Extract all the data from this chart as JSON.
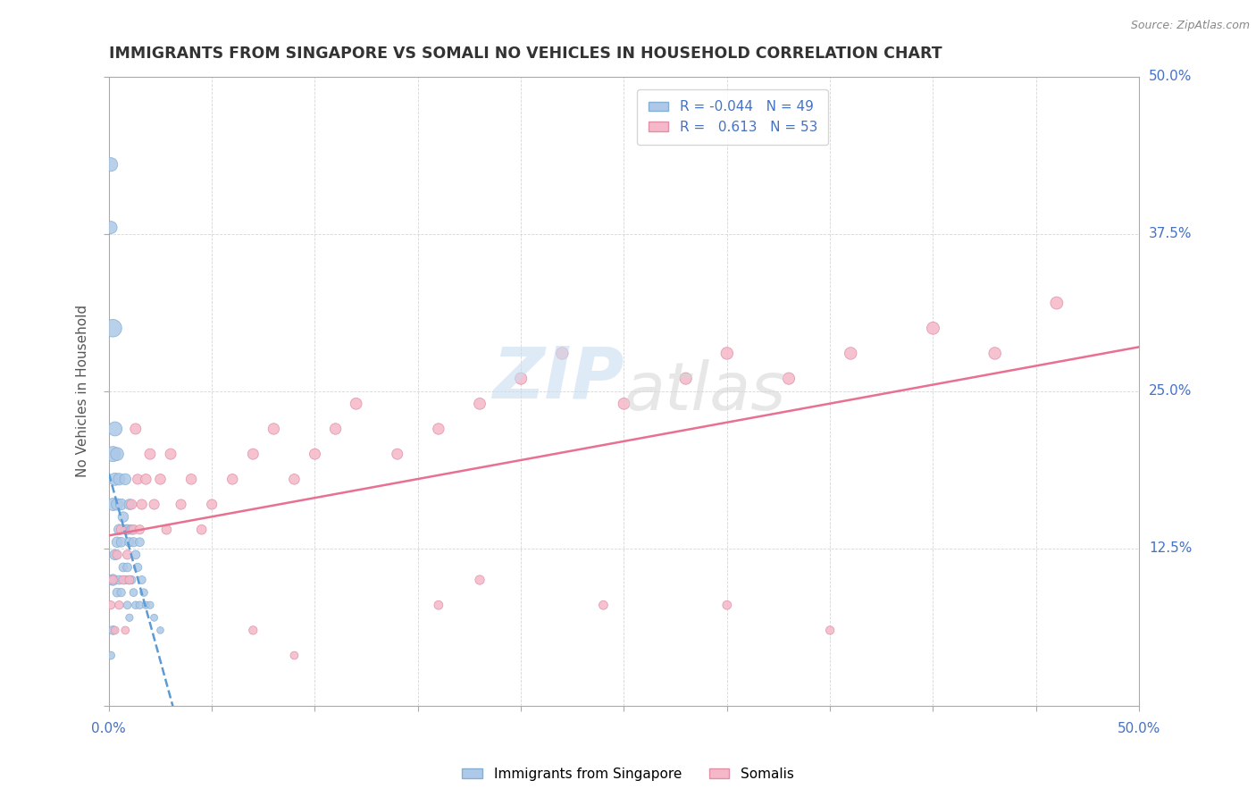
{
  "title": "IMMIGRANTS FROM SINGAPORE VS SOMALI NO VEHICLES IN HOUSEHOLD CORRELATION CHART",
  "source": "Source: ZipAtlas.com",
  "ylabel": "No Vehicles in Household",
  "blue_color": "#adc8e8",
  "pink_color": "#f5b8c8",
  "blue_line_color": "#5b9bd5",
  "pink_line_color": "#e87090",
  "xlim": [
    0.0,
    0.5
  ],
  "ylim": [
    0.0,
    0.5
  ],
  "sg_x": [
    0.001,
    0.001,
    0.001,
    0.001,
    0.002,
    0.002,
    0.002,
    0.002,
    0.002,
    0.003,
    0.003,
    0.003,
    0.004,
    0.004,
    0.004,
    0.004,
    0.005,
    0.005,
    0.005,
    0.006,
    0.006,
    0.006,
    0.007,
    0.007,
    0.008,
    0.008,
    0.008,
    0.009,
    0.009,
    0.009,
    0.01,
    0.01,
    0.01,
    0.01,
    0.011,
    0.011,
    0.012,
    0.012,
    0.013,
    0.013,
    0.014,
    0.015,
    0.015,
    0.016,
    0.017,
    0.018,
    0.02,
    0.022,
    0.025
  ],
  "sg_y": [
    0.43,
    0.38,
    0.1,
    0.04,
    0.3,
    0.2,
    0.16,
    0.1,
    0.06,
    0.22,
    0.18,
    0.12,
    0.2,
    0.16,
    0.13,
    0.09,
    0.18,
    0.14,
    0.1,
    0.16,
    0.13,
    0.09,
    0.15,
    0.11,
    0.18,
    0.14,
    0.1,
    0.14,
    0.11,
    0.08,
    0.16,
    0.13,
    0.1,
    0.07,
    0.14,
    0.1,
    0.13,
    0.09,
    0.12,
    0.08,
    0.11,
    0.13,
    0.08,
    0.1,
    0.09,
    0.08,
    0.08,
    0.07,
    0.06
  ],
  "sg_size": [
    120,
    100,
    60,
    40,
    200,
    150,
    100,
    80,
    50,
    130,
    100,
    70,
    110,
    90,
    70,
    50,
    90,
    70,
    50,
    80,
    60,
    45,
    70,
    50,
    80,
    60,
    45,
    65,
    50,
    40,
    70,
    55,
    45,
    35,
    60,
    45,
    55,
    40,
    50,
    38,
    45,
    50,
    38,
    42,
    38,
    35,
    35,
    32,
    30
  ],
  "so_x": [
    0.001,
    0.002,
    0.003,
    0.004,
    0.005,
    0.006,
    0.007,
    0.008,
    0.009,
    0.01,
    0.011,
    0.012,
    0.013,
    0.014,
    0.015,
    0.016,
    0.018,
    0.02,
    0.022,
    0.025,
    0.028,
    0.03,
    0.035,
    0.04,
    0.045,
    0.05,
    0.06,
    0.07,
    0.08,
    0.09,
    0.1,
    0.11,
    0.12,
    0.14,
    0.16,
    0.18,
    0.2,
    0.22,
    0.25,
    0.28,
    0.3,
    0.33,
    0.36,
    0.4,
    0.43,
    0.46,
    0.3,
    0.35,
    0.24,
    0.18,
    0.09,
    0.16,
    0.07
  ],
  "so_y": [
    0.08,
    0.1,
    0.06,
    0.12,
    0.08,
    0.14,
    0.1,
    0.06,
    0.12,
    0.1,
    0.16,
    0.14,
    0.22,
    0.18,
    0.14,
    0.16,
    0.18,
    0.2,
    0.16,
    0.18,
    0.14,
    0.2,
    0.16,
    0.18,
    0.14,
    0.16,
    0.18,
    0.2,
    0.22,
    0.18,
    0.2,
    0.22,
    0.24,
    0.2,
    0.22,
    0.24,
    0.26,
    0.28,
    0.24,
    0.26,
    0.28,
    0.26,
    0.28,
    0.3,
    0.28,
    0.32,
    0.08,
    0.06,
    0.08,
    0.1,
    0.04,
    0.08,
    0.06
  ],
  "so_size": [
    45,
    50,
    40,
    55,
    45,
    60,
    50,
    40,
    55,
    50,
    65,
    60,
    75,
    65,
    55,
    65,
    70,
    75,
    65,
    70,
    60,
    75,
    65,
    70,
    60,
    65,
    70,
    75,
    80,
    70,
    75,
    80,
    85,
    75,
    80,
    85,
    90,
    95,
    85,
    90,
    95,
    90,
    95,
    100,
    95,
    100,
    50,
    45,
    50,
    55,
    40,
    50,
    45
  ]
}
